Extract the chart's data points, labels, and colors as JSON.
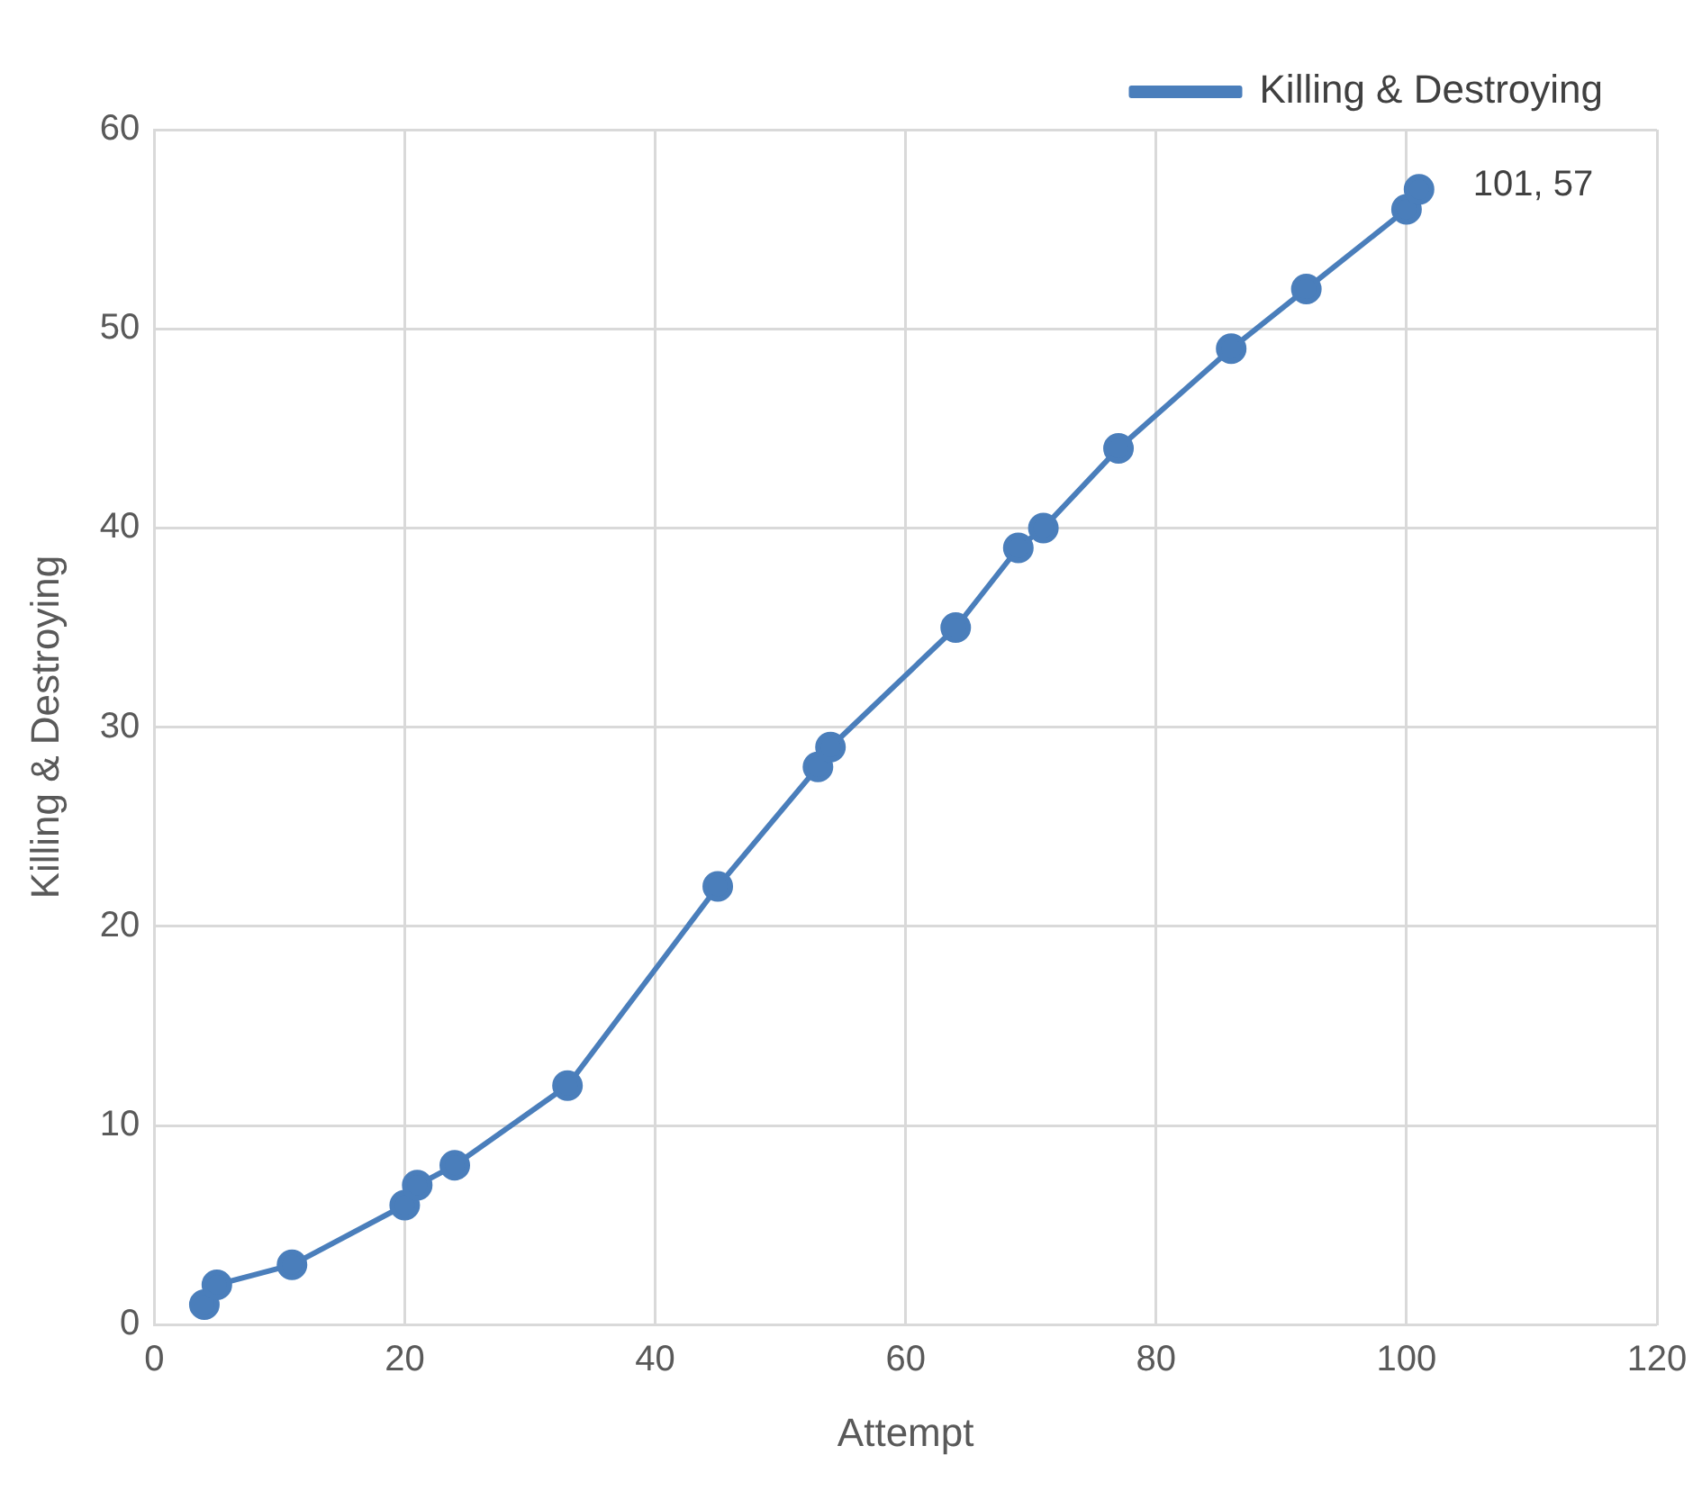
{
  "chart_data": {
    "type": "line",
    "xlabel": "Attempt",
    "ylabel": "Killing & Destroying",
    "x": [
      4,
      5,
      11,
      20,
      21,
      24,
      33,
      45,
      53,
      54,
      64,
      69,
      71,
      77,
      86,
      92,
      100,
      101
    ],
    "series": [
      {
        "name": "Killing & Destroying",
        "color": "#4a7ebb",
        "values": [
          1,
          2,
          3,
          6,
          7,
          8,
          12,
          22,
          28,
          29,
          35,
          39,
          40,
          44,
          49,
          52,
          56,
          57
        ]
      }
    ],
    "xlim": [
      0,
      120
    ],
    "xticks": [
      0,
      20,
      40,
      60,
      80,
      100,
      120
    ],
    "ylim": [
      0,
      60
    ],
    "yticks": [
      0,
      10,
      20,
      30,
      40,
      50,
      60
    ],
    "annotations": [
      {
        "text": "101, 57",
        "x": 101,
        "y": 57
      }
    ],
    "grid": true,
    "legend": "top right",
    "marker": "circle",
    "line_style": "solid"
  }
}
